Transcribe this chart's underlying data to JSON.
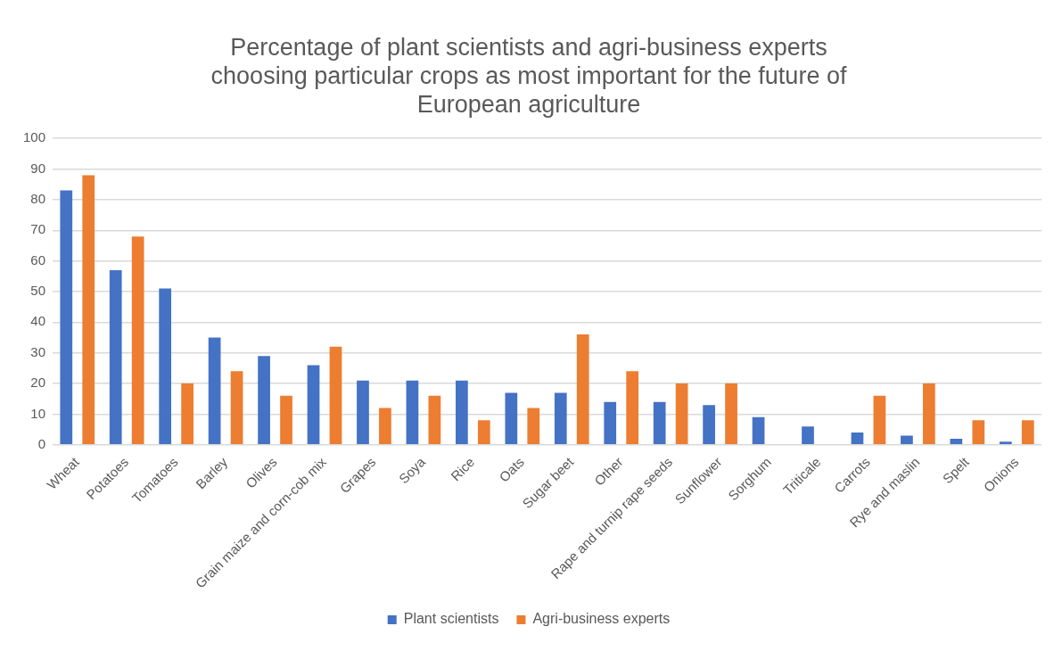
{
  "chart_data": {
    "type": "bar",
    "title": "Percentage of plant scientists and agri-business experts choosing particular crops as most important for the future of European agriculture",
    "categories": [
      "Wheat",
      "Potatoes",
      "Tomatoes",
      "Barley",
      "Olives",
      "Grain maize and corn-cob mix",
      "Grapes",
      "Soya",
      "Rice",
      "Oats",
      "Sugar beet",
      "Other",
      "Rape and turnip rape seeds",
      "Sunflower",
      "Sorghum",
      "Triticale",
      "Carrots",
      "Rye and maslin",
      "Spelt",
      "Onions"
    ],
    "series": [
      {
        "name": "Plant scientists",
        "color": "#4472c4",
        "values": [
          83,
          57,
          51,
          35,
          29,
          26,
          21,
          21,
          21,
          17,
          17,
          14,
          14,
          13,
          9,
          6,
          4,
          3,
          2,
          1
        ]
      },
      {
        "name": "Agri-business experts",
        "color": "#ed7d31",
        "values": [
          88,
          68,
          20,
          24,
          16,
          32,
          12,
          16,
          8,
          12,
          36,
          24,
          20,
          20,
          0,
          0,
          16,
          20,
          8,
          8
        ]
      }
    ],
    "ylim": [
      0,
      100
    ],
    "yticks": [
      0,
      10,
      20,
      30,
      40,
      50,
      60,
      70,
      80,
      90,
      100
    ],
    "grid": "y",
    "legend": "bottom"
  }
}
